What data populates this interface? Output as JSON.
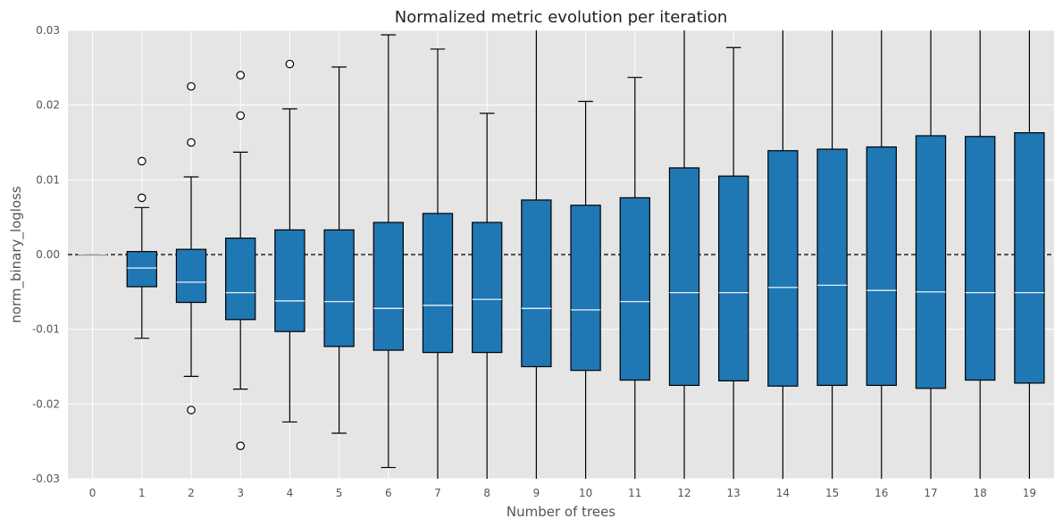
{
  "chart_data": {
    "type": "box",
    "title": "Normalized metric evolution per iteration",
    "xlabel": "Number of trees",
    "ylabel": "norm_binary_logloss",
    "ylim": [
      -0.03,
      0.03
    ],
    "yticks": [
      -0.03,
      -0.02,
      -0.01,
      0.0,
      0.01,
      0.02,
      0.03
    ],
    "ytick_labels": [
      "-0.03",
      "-0.02",
      "-0.01",
      "0.00",
      "0.01",
      "0.02",
      "0.03"
    ],
    "grid": true,
    "reference_line": {
      "y": 0.0,
      "style": "dashed",
      "color": "#000000"
    },
    "box_color": "#1f77b4",
    "median_color": "#ffffff",
    "background_color": "#e5e5e5",
    "categories": [
      "0",
      "1",
      "2",
      "3",
      "4",
      "5",
      "6",
      "7",
      "8",
      "9",
      "10",
      "11",
      "12",
      "13",
      "14",
      "15",
      "16",
      "17",
      "18",
      "19"
    ],
    "boxes": [
      {
        "whislo": 0.0,
        "q1": 0.0,
        "med": 0.0,
        "q3": 0.0,
        "whishi": 0.0,
        "fliers": []
      },
      {
        "whislo": -0.0112,
        "q1": -0.0043,
        "med": -0.0018,
        "q3": 0.0004,
        "whishi": 0.0063,
        "fliers": [
          0.0076,
          0.0125
        ]
      },
      {
        "whislo": -0.0163,
        "q1": -0.0064,
        "med": -0.0037,
        "q3": 0.0007,
        "whishi": 0.0104,
        "fliers": [
          0.015,
          0.0225,
          -0.0208
        ]
      },
      {
        "whislo": -0.018,
        "q1": -0.0087,
        "med": -0.0051,
        "q3": 0.0022,
        "whishi": 0.0137,
        "fliers": [
          0.0186,
          0.024,
          -0.0256
        ]
      },
      {
        "whislo": -0.0224,
        "q1": -0.0103,
        "med": -0.0062,
        "q3": 0.0033,
        "whishi": 0.0195,
        "fliers": [
          0.0255
        ]
      },
      {
        "whislo": -0.0239,
        "q1": -0.0123,
        "med": -0.0063,
        "q3": 0.0033,
        "whishi": 0.0251,
        "fliers": []
      },
      {
        "whislo": -0.0285,
        "q1": -0.0128,
        "med": -0.0072,
        "q3": 0.0043,
        "whishi": 0.0294,
        "fliers": []
      },
      {
        "whislo": -0.031,
        "q1": -0.0131,
        "med": -0.0068,
        "q3": 0.0055,
        "whishi": 0.0275,
        "fliers": []
      },
      {
        "whislo": -0.031,
        "q1": -0.0131,
        "med": -0.006,
        "q3": 0.0043,
        "whishi": 0.0189,
        "fliers": []
      },
      {
        "whislo": -0.031,
        "q1": -0.015,
        "med": -0.0072,
        "q3": 0.0073,
        "whishi": 0.031,
        "fliers": []
      },
      {
        "whislo": -0.031,
        "q1": -0.0155,
        "med": -0.0074,
        "q3": 0.0066,
        "whishi": 0.0205,
        "fliers": []
      },
      {
        "whislo": -0.031,
        "q1": -0.0168,
        "med": -0.0063,
        "q3": 0.0076,
        "whishi": 0.0237,
        "fliers": []
      },
      {
        "whislo": -0.031,
        "q1": -0.0175,
        "med": -0.0051,
        "q3": 0.0116,
        "whishi": 0.031,
        "fliers": []
      },
      {
        "whislo": -0.031,
        "q1": -0.0169,
        "med": -0.0051,
        "q3": 0.0105,
        "whishi": 0.0277,
        "fliers": []
      },
      {
        "whislo": -0.031,
        "q1": -0.0176,
        "med": -0.0044,
        "q3": 0.0139,
        "whishi": 0.031,
        "fliers": []
      },
      {
        "whislo": -0.031,
        "q1": -0.0175,
        "med": -0.0041,
        "q3": 0.0141,
        "whishi": 0.031,
        "fliers": []
      },
      {
        "whislo": -0.031,
        "q1": -0.0175,
        "med": -0.0048,
        "q3": 0.0144,
        "whishi": 0.031,
        "fliers": []
      },
      {
        "whislo": -0.031,
        "q1": -0.0179,
        "med": -0.005,
        "q3": 0.0159,
        "whishi": 0.031,
        "fliers": []
      },
      {
        "whislo": -0.031,
        "q1": -0.0168,
        "med": -0.0051,
        "q3": 0.0158,
        "whishi": 0.031,
        "fliers": []
      },
      {
        "whislo": -0.031,
        "q1": -0.0172,
        "med": -0.0051,
        "q3": 0.0163,
        "whishi": 0.031,
        "fliers": []
      }
    ]
  }
}
